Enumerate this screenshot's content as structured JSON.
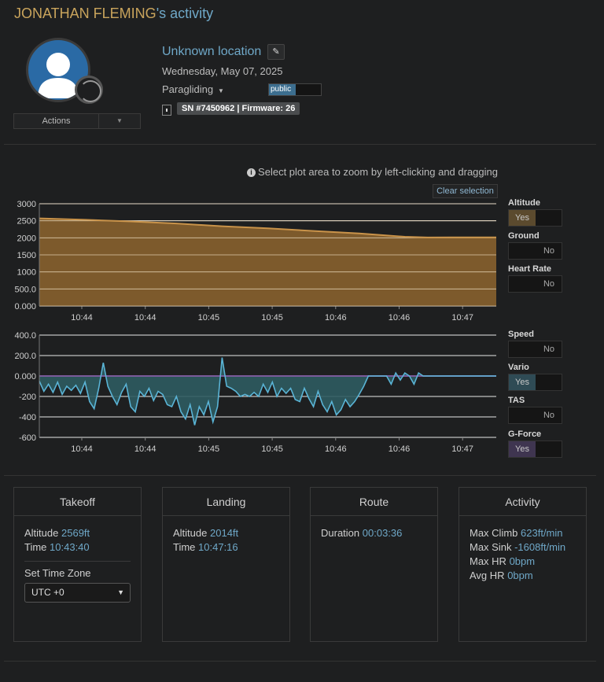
{
  "header": {
    "name": "JONATHAN FLEMING",
    "suffix": "'s activity"
  },
  "profile": {
    "actions_label": "Actions"
  },
  "activity": {
    "location": "Unknown location",
    "date": "Wednesday, May 07, 2025",
    "sport": "Paragliding",
    "visibility": "public",
    "device": "SN #7450962 | Firmware: 26"
  },
  "plot": {
    "hint": "Select plot area to zoom by left-clicking and dragging",
    "clear_label": "Clear selection"
  },
  "toggles": [
    {
      "label": "Altitude",
      "state": "Yes",
      "on": true,
      "color": "#5b4a2e"
    },
    {
      "label": "Ground",
      "state": "No",
      "on": false
    },
    {
      "label": "Heart Rate",
      "state": "No",
      "on": false
    },
    {
      "label": "Speed",
      "state": "No",
      "on": false
    },
    {
      "label": "Vario",
      "state": "Yes",
      "on": true,
      "color": "#2f4b55"
    },
    {
      "label": "TAS",
      "state": "No",
      "on": false
    },
    {
      "label": "G-Force",
      "state": "Yes",
      "on": true,
      "color": "#3f3550"
    }
  ],
  "chart_data": [
    {
      "type": "area",
      "series": [
        {
          "name": "Altitude",
          "color": "#c9934a"
        }
      ],
      "x_ticks": [
        "10:44",
        "10:44",
        "10:45",
        "10:45",
        "10:46",
        "10:46",
        "10:47"
      ],
      "y_ticks": [
        "3000",
        "2500",
        "2000",
        "1500",
        "1000",
        "500.0",
        "0.000"
      ],
      "ylim": [
        0,
        3000
      ],
      "x": [
        0,
        0.1,
        0.2,
        0.3,
        0.4,
        0.5,
        0.6,
        0.7,
        0.8,
        0.85,
        0.9,
        1.0
      ],
      "values": [
        2569,
        2530,
        2480,
        2420,
        2340,
        2280,
        2200,
        2130,
        2030,
        2010,
        2014,
        2014
      ],
      "grid": true
    },
    {
      "type": "line",
      "series": [
        {
          "name": "Vario",
          "color": "#5ab4d6"
        },
        {
          "name": "G-Force",
          "color": "#7a5a9a"
        }
      ],
      "x_ticks": [
        "10:44",
        "10:44",
        "10:45",
        "10:45",
        "10:46",
        "10:46",
        "10:47"
      ],
      "y_ticks": [
        "400.0",
        "200.0",
        "0.000",
        "-200",
        "-400",
        "-600"
      ],
      "ylim": [
        -600,
        400
      ],
      "x": [
        0,
        0.01,
        0.02,
        0.03,
        0.04,
        0.05,
        0.06,
        0.07,
        0.08,
        0.09,
        0.1,
        0.11,
        0.12,
        0.13,
        0.14,
        0.15,
        0.16,
        0.17,
        0.18,
        0.19,
        0.2,
        0.21,
        0.22,
        0.23,
        0.24,
        0.25,
        0.26,
        0.27,
        0.28,
        0.29,
        0.3,
        0.31,
        0.32,
        0.33,
        0.34,
        0.35,
        0.36,
        0.37,
        0.38,
        0.39,
        0.4,
        0.41,
        0.42,
        0.43,
        0.44,
        0.45,
        0.46,
        0.47,
        0.48,
        0.49,
        0.5,
        0.51,
        0.52,
        0.53,
        0.54,
        0.55,
        0.56,
        0.57,
        0.58,
        0.59,
        0.6,
        0.61,
        0.62,
        0.63,
        0.64,
        0.65,
        0.66,
        0.67,
        0.68,
        0.69,
        0.7,
        0.71,
        0.72,
        0.73,
        0.74,
        0.75,
        0.76,
        0.77,
        0.78,
        0.79,
        0.8,
        0.81,
        0.82,
        0.83,
        0.84,
        0.85,
        0.86,
        0.87,
        0.88,
        0.89,
        0.9,
        0.91,
        0.92,
        0.93,
        0.94,
        0.95,
        0.96,
        0.97,
        0.98,
        0.99,
        1.0
      ],
      "values": [
        -50,
        -150,
        -80,
        -160,
        -60,
        -180,
        -100,
        -140,
        -90,
        -170,
        -60,
        -250,
        -320,
        -120,
        130,
        -100,
        -200,
        -280,
        -160,
        -80,
        -300,
        -350,
        -150,
        -200,
        -120,
        -240,
        -150,
        -180,
        -280,
        -300,
        -200,
        -350,
        -420,
        -280,
        -480,
        -300,
        -380,
        -250,
        -450,
        -300,
        180,
        -100,
        -120,
        -150,
        -200,
        -180,
        -200,
        -160,
        -200,
        -80,
        -160,
        -60,
        -200,
        -120,
        -170,
        -120,
        -230,
        -250,
        -120,
        -220,
        -300,
        -150,
        -280,
        -350,
        -250,
        -380,
        -330,
        -230,
        -300,
        -250,
        -180,
        -100,
        0,
        0,
        0,
        0,
        0,
        -80,
        30,
        -40,
        30,
        0,
        -80,
        30,
        0,
        0,
        0,
        0,
        0,
        0,
        0,
        0,
        0,
        0,
        0,
        0,
        0,
        0,
        0,
        0,
        0
      ],
      "gforce": 0,
      "grid": true
    }
  ],
  "stats": {
    "takeoff": {
      "title": "Takeoff",
      "altitude_label": "Altitude",
      "altitude": "2569ft",
      "time_label": "Time",
      "time": "10:43:40",
      "tz_label": "Set Time Zone",
      "tz_value": "UTC +0"
    },
    "landing": {
      "title": "Landing",
      "altitude_label": "Altitude",
      "altitude": "2014ft",
      "time_label": "Time",
      "time": "10:47:16"
    },
    "route": {
      "title": "Route",
      "duration_label": "Duration",
      "duration": "00:03:36"
    },
    "activity": {
      "title": "Activity",
      "max_climb_label": "Max Climb",
      "max_climb": "623ft/min",
      "max_sink_label": "Max Sink",
      "max_sink": "-1608ft/min",
      "max_hr_label": "Max HR",
      "max_hr": "0bpm",
      "avg_hr_label": "Avg HR",
      "avg_hr": "0bpm"
    }
  }
}
